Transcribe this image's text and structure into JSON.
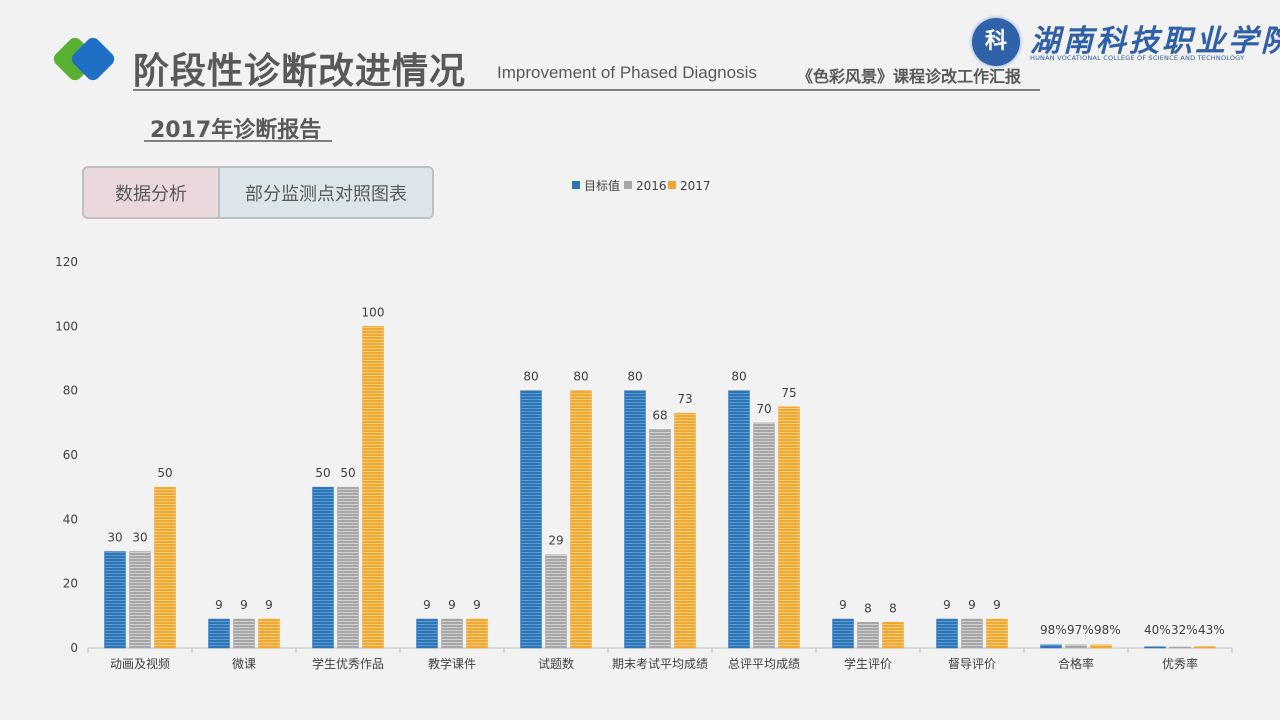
{
  "header": {
    "title": "阶段性诊断改进情况",
    "title_en": "Improvement of Phased Diagnosis",
    "course_title": "《色彩风景》课程诊改工作汇报"
  },
  "school": {
    "name": "湖南科技职业学院",
    "name_en": "HUNAN VOCATIONAL COLLEGE OF SCIENCE AND TECHNOLOGY"
  },
  "subtitle": "2017年诊断报告",
  "tabs": [
    {
      "label": "数据分析",
      "active": true
    },
    {
      "label": "部分监测点对照图表",
      "active": false
    }
  ],
  "colors": {
    "target": "#2e75b6",
    "y2016": "#a6a6a6",
    "y2017": "#f0a830",
    "accent_green": "#5ab030",
    "accent_blue": "#1f6fc5"
  },
  "chart_data": {
    "type": "bar",
    "categories": [
      "动画及视频",
      "微课",
      "学生优秀作品",
      "教学课件",
      "试题数",
      "期末考试平均成绩",
      "总评平均成绩",
      "学生评价",
      "督导评价",
      "合格率",
      "优秀率"
    ],
    "series": [
      {
        "name": "目标值",
        "values": [
          30,
          9,
          50,
          9,
          80,
          80,
          80,
          9,
          9,
          0.98,
          0.4
        ],
        "labels": [
          "30",
          "9",
          "50",
          "9",
          "80",
          "80",
          "80",
          "9",
          "9",
          "98%",
          "40%"
        ]
      },
      {
        "name": "2016",
        "values": [
          30,
          9,
          50,
          9,
          29,
          68,
          70,
          8,
          9,
          0.97,
          0.32
        ],
        "labels": [
          "30",
          "9",
          "50",
          "9",
          "29",
          "68",
          "70",
          "8",
          "9",
          "97%",
          "32%"
        ]
      },
      {
        "name": "2017",
        "values": [
          50,
          9,
          100,
          9,
          80,
          73,
          75,
          8,
          9,
          0.98,
          0.43
        ],
        "labels": [
          "50",
          "9",
          "100",
          "9",
          "80",
          "73",
          "75",
          "8",
          "9",
          "98%",
          "43%"
        ]
      }
    ],
    "yticks": [
      "0",
      "20",
      "40",
      "60",
      "80",
      "100",
      "120"
    ],
    "ylim": [
      0,
      120
    ],
    "legend_position": "top-center",
    "grid": false
  }
}
